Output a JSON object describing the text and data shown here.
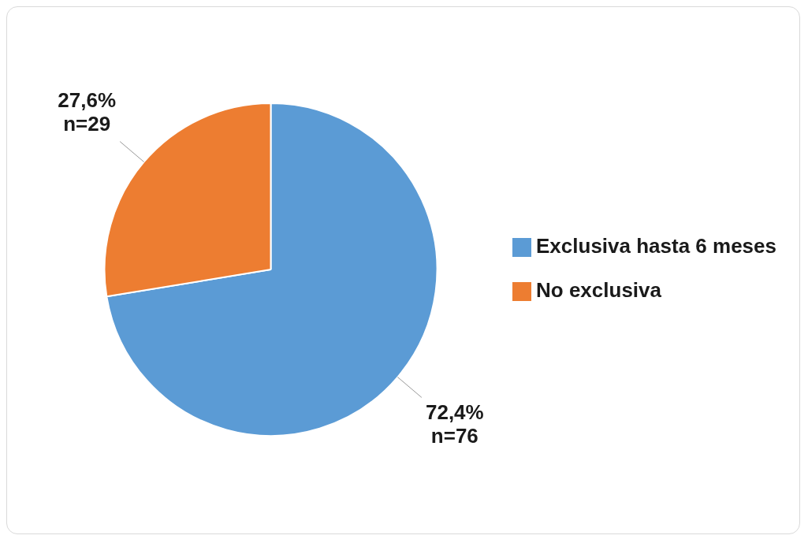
{
  "chart_data": {
    "type": "pie",
    "categories": [
      "Exclusiva hasta 6 meses",
      "No exclusiva"
    ],
    "values": [
      72.4,
      27.6
    ],
    "colors": [
      "#5b9bd5",
      "#ed7d31"
    ],
    "value_labels": [
      "72,4%\nn=76",
      "27,6%\nn=29"
    ],
    "legend": "right"
  }
}
